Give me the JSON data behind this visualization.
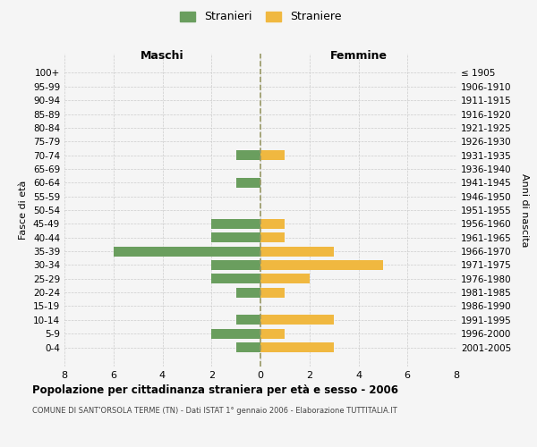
{
  "age_groups": [
    "100+",
    "95-99",
    "90-94",
    "85-89",
    "80-84",
    "75-79",
    "70-74",
    "65-69",
    "60-64",
    "55-59",
    "50-54",
    "45-49",
    "40-44",
    "35-39",
    "30-34",
    "25-29",
    "20-24",
    "15-19",
    "10-14",
    "5-9",
    "0-4"
  ],
  "birth_years": [
    "≤ 1905",
    "1906-1910",
    "1911-1915",
    "1916-1920",
    "1921-1925",
    "1926-1930",
    "1931-1935",
    "1936-1940",
    "1941-1945",
    "1946-1950",
    "1951-1955",
    "1956-1960",
    "1961-1965",
    "1966-1970",
    "1971-1975",
    "1976-1980",
    "1981-1985",
    "1986-1990",
    "1991-1995",
    "1996-2000",
    "2001-2005"
  ],
  "maschi": [
    0,
    0,
    0,
    0,
    0,
    0,
    1,
    0,
    1,
    0,
    0,
    2,
    2,
    6,
    2,
    2,
    1,
    0,
    1,
    2,
    1
  ],
  "femmine": [
    0,
    0,
    0,
    0,
    0,
    0,
    1,
    0,
    0,
    0,
    0,
    1,
    1,
    3,
    5,
    2,
    1,
    0,
    3,
    1,
    3
  ],
  "color_maschi": "#6a9e5e",
  "color_femmine": "#f0b840",
  "title": "Popolazione per cittadinanza straniera per età e sesso - 2006",
  "subtitle": "COMUNE DI SANT'ORSOLA TERME (TN) - Dati ISTAT 1° gennaio 2006 - Elaborazione TUTTITALIA.IT",
  "legend_maschi": "Stranieri",
  "legend_femmine": "Straniere",
  "label_maschi": "Maschi",
  "label_femmine": "Femmine",
  "ylabel_left": "Fasce di età",
  "ylabel_right": "Anni di nascita",
  "xlim": 8,
  "bg_color": "#f5f5f5",
  "grid_color": "#cccccc",
  "center_line_color": "#999966"
}
